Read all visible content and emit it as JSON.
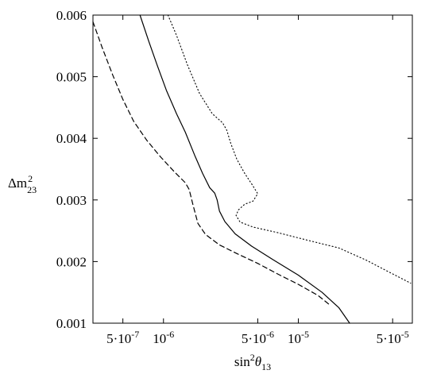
{
  "chart_data": {
    "type": "line",
    "title": "",
    "xlabel": {
      "base": "sin",
      "sup": "2",
      "theta": "θ",
      "sub": "13"
    },
    "ylabel": {
      "base": "Δm",
      "sup": "2",
      "sub": "23"
    },
    "x_scale": "log",
    "xlim": [
      3e-07,
      7e-05
    ],
    "ylim": [
      0.001,
      0.006
    ],
    "grid": false,
    "legend": "none",
    "x_ticks": [
      {
        "value": 5e-07,
        "label": "5·10",
        "exp": "-7"
      },
      {
        "value": 1e-06,
        "label": "10",
        "exp": "-6"
      },
      {
        "value": 5e-06,
        "label": "5·10",
        "exp": "-6"
      },
      {
        "value": 1e-05,
        "label": "10",
        "exp": "-5"
      },
      {
        "value": 5e-05,
        "label": "5·10",
        "exp": "-5"
      }
    ],
    "y_ticks": [
      {
        "value": 0.001,
        "label": "0.001"
      },
      {
        "value": 0.002,
        "label": "0.002"
      },
      {
        "value": 0.003,
        "label": "0.003"
      },
      {
        "value": 0.004,
        "label": "0.004"
      },
      {
        "value": 0.005,
        "label": "0.005"
      },
      {
        "value": 0.006,
        "label": "0.006"
      }
    ],
    "series": [
      {
        "style": "dashed",
        "points": [
          [
            3e-07,
            0.00589
          ],
          [
            3.5e-07,
            0.00548
          ],
          [
            4.2e-07,
            0.00503
          ],
          [
            5e-07,
            0.00463
          ],
          [
            6e-07,
            0.00428
          ],
          [
            7.5e-07,
            0.00397
          ],
          [
            9.5e-07,
            0.0037
          ],
          [
            1.2e-06,
            0.00346
          ],
          [
            1.45e-06,
            0.00328
          ],
          [
            1.55e-06,
            0.00317
          ],
          [
            1.65e-06,
            0.00293
          ],
          [
            1.8e-06,
            0.00262
          ],
          [
            2.05e-06,
            0.00244
          ],
          [
            2.6e-06,
            0.00227
          ],
          [
            3.5e-06,
            0.00213
          ],
          [
            5e-06,
            0.00197
          ],
          [
            7e-06,
            0.0018
          ],
          [
            1e-05,
            0.00163
          ],
          [
            1.4e-05,
            0.00145
          ],
          [
            1.7e-05,
            0.0013
          ]
        ]
      },
      {
        "style": "solid",
        "points": [
          [
            6.7e-07,
            0.006
          ],
          [
            7.8e-07,
            0.00557
          ],
          [
            9e-07,
            0.00518
          ],
          [
            1.05e-06,
            0.00478
          ],
          [
            1.25e-06,
            0.0044
          ],
          [
            1.45e-06,
            0.0041
          ],
          [
            1.7e-06,
            0.00373
          ],
          [
            1.95e-06,
            0.00343
          ],
          [
            2.2e-06,
            0.0032
          ],
          [
            2.4e-06,
            0.00311
          ],
          [
            2.5e-06,
            0.003
          ],
          [
            2.6e-06,
            0.00282
          ],
          [
            2.85e-06,
            0.00265
          ],
          [
            3.4e-06,
            0.00245
          ],
          [
            4.5e-06,
            0.00225
          ],
          [
            6.5e-06,
            0.00203
          ],
          [
            1e-05,
            0.00178
          ],
          [
            1.5e-05,
            0.0015
          ],
          [
            2e-05,
            0.00125
          ],
          [
            2.4e-05,
            0.001
          ]
        ]
      },
      {
        "style": "dotted",
        "points": [
          [
            1.08e-06,
            0.006
          ],
          [
            1.25e-06,
            0.00567
          ],
          [
            1.5e-06,
            0.0052
          ],
          [
            1.85e-06,
            0.00473
          ],
          [
            2.3e-06,
            0.0044
          ],
          [
            2.75e-06,
            0.00425
          ],
          [
            2.95e-06,
            0.00413
          ],
          [
            3.15e-06,
            0.00392
          ],
          [
            3.5e-06,
            0.00366
          ],
          [
            4e-06,
            0.00343
          ],
          [
            4.6e-06,
            0.00323
          ],
          [
            5e-06,
            0.0031
          ],
          [
            4.6e-06,
            0.00298
          ],
          [
            4e-06,
            0.00293
          ],
          [
            3.6e-06,
            0.00284
          ],
          [
            3.45e-06,
            0.00275
          ],
          [
            3.7e-06,
            0.00264
          ],
          [
            4.6e-06,
            0.00256
          ],
          [
            7e-06,
            0.00247
          ],
          [
            1.2e-05,
            0.00234
          ],
          [
            2e-05,
            0.00222
          ],
          [
            3.2e-05,
            0.00202
          ],
          [
            4.8e-05,
            0.00182
          ],
          [
            6.8e-05,
            0.00165
          ]
        ]
      }
    ]
  }
}
